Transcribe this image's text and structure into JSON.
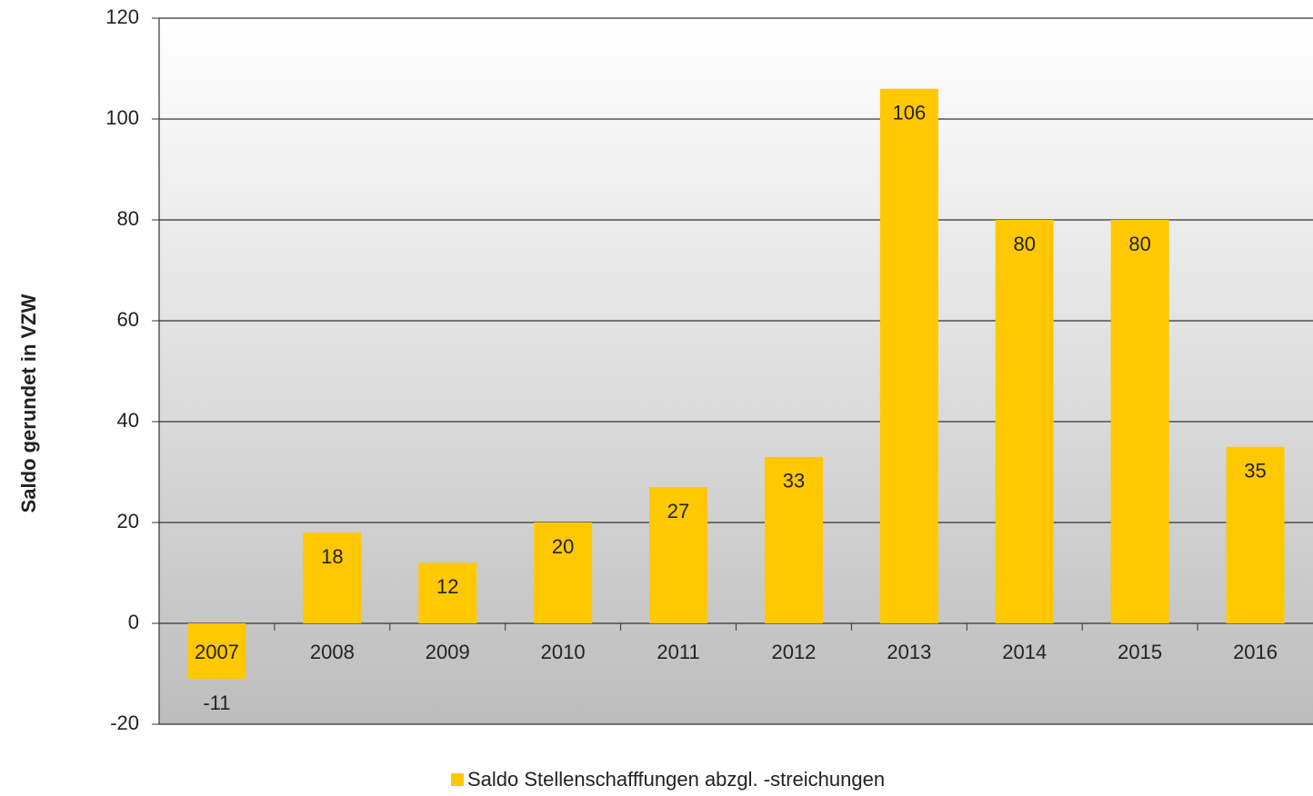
{
  "chart_data": {
    "type": "bar",
    "y_label": "Saldo gerundet in VZW",
    "categories": [
      "2007",
      "2008",
      "2009",
      "2010",
      "2011",
      "2012",
      "2013",
      "2014",
      "2015",
      "2016"
    ],
    "series": [
      {
        "name": "Saldo Stellenschafffungen abzgl. -streichungen",
        "color": "#ffc800",
        "values": [
          -11,
          18,
          12,
          20,
          27,
          33,
          106,
          80,
          80,
          35
        ]
      }
    ],
    "ylim": [
      -20,
      120
    ],
    "yticks": [
      -20,
      0,
      20,
      40,
      60,
      80,
      100,
      120
    ],
    "grid": true
  }
}
